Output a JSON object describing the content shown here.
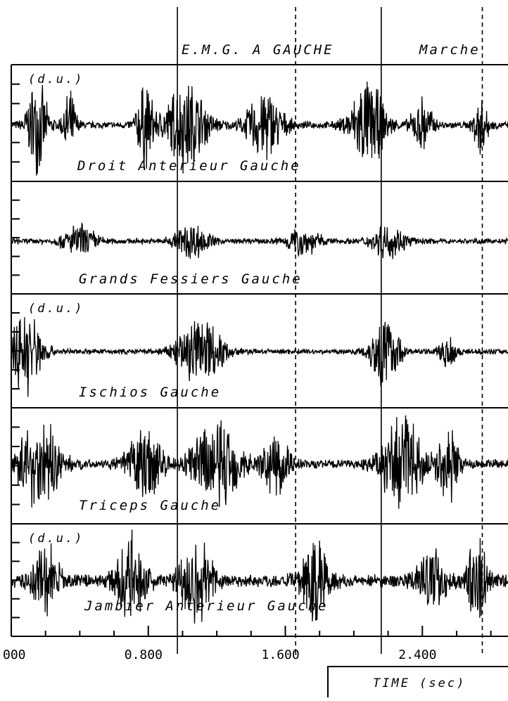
{
  "chart_data": {
    "type": "line",
    "title": "E.M.G. A GAUCHE",
    "title_right": "Marche",
    "xlabel": "TIME (sec)",
    "x_ticks": [
      "000",
      "0.800",
      "1.600",
      "2.400"
    ],
    "xlim": [
      0.0,
      2.9
    ],
    "unit_labels": [
      "(d.u.)",
      "(d.u.)",
      "(d.u.)"
    ],
    "vertical_markers_sec": [
      0.97,
      1.66,
      2.16,
      2.75
    ],
    "series": [
      {
        "name": "Droit Anterieur Gauche",
        "bursts": [
          [
            0.15,
            0.06,
            1.0
          ],
          [
            0.34,
            0.04,
            0.7
          ],
          [
            0.78,
            0.05,
            0.9
          ],
          [
            1.02,
            0.12,
            1.0
          ],
          [
            1.48,
            0.1,
            0.8
          ],
          [
            2.08,
            0.1,
            1.0
          ],
          [
            2.4,
            0.06,
            0.6
          ],
          [
            2.74,
            0.04,
            0.7
          ]
        ],
        "baseline": 0.08
      },
      {
        "name": "Grands Fessiers Gauche",
        "bursts": [
          [
            0.4,
            0.1,
            0.35
          ],
          [
            1.05,
            0.1,
            0.4
          ],
          [
            1.7,
            0.1,
            0.3
          ],
          [
            2.2,
            0.1,
            0.35
          ]
        ],
        "baseline": 0.06
      },
      {
        "name": "Ischios Gauche",
        "bursts": [
          [
            0.08,
            0.1,
            1.0
          ],
          [
            1.1,
            0.12,
            0.95
          ],
          [
            2.18,
            0.08,
            0.9
          ],
          [
            2.55,
            0.05,
            0.4
          ]
        ],
        "baseline": 0.06
      },
      {
        "name": "Triceps Gauche",
        "bursts": [
          [
            0.16,
            0.12,
            1.0
          ],
          [
            0.78,
            0.1,
            0.8
          ],
          [
            1.2,
            0.14,
            1.0
          ],
          [
            1.55,
            0.08,
            0.7
          ],
          [
            2.28,
            0.12,
            1.0
          ],
          [
            2.55,
            0.06,
            0.8
          ]
        ],
        "baseline": 0.1
      },
      {
        "name": "Jambier Anterieur Gauche",
        "bursts": [
          [
            0.2,
            0.08,
            0.8
          ],
          [
            0.7,
            0.08,
            0.9
          ],
          [
            1.08,
            0.1,
            0.9
          ],
          [
            1.78,
            0.08,
            1.0
          ],
          [
            2.45,
            0.08,
            0.7
          ],
          [
            2.72,
            0.06,
            0.9
          ]
        ],
        "baseline": 0.15
      }
    ],
    "grid": false,
    "legend": "none"
  }
}
